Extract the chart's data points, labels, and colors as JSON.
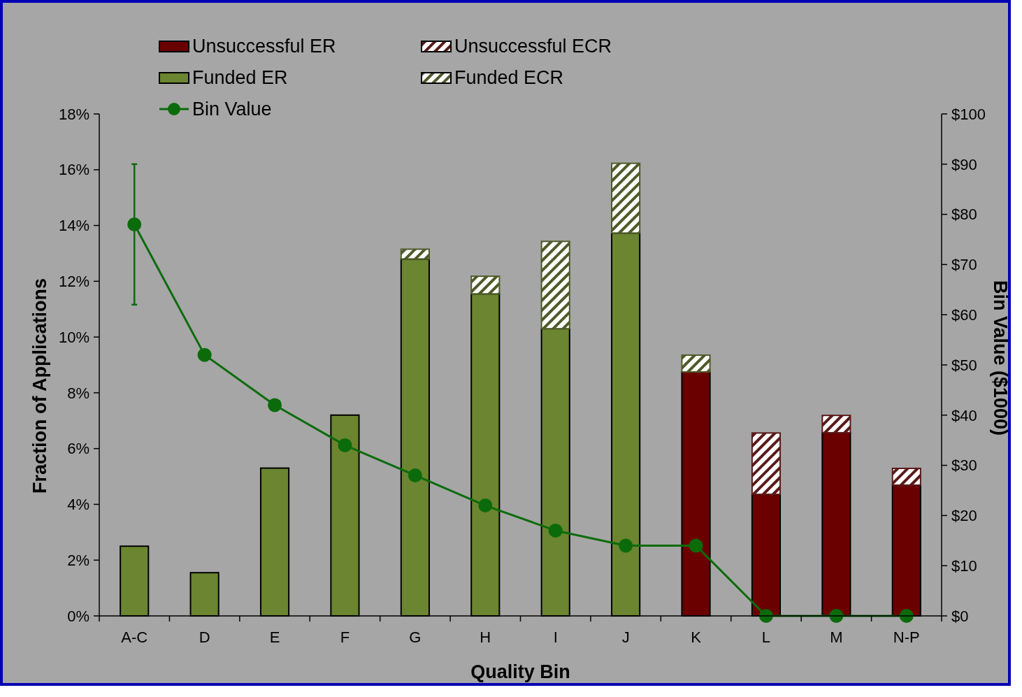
{
  "chart_data": {
    "type": "bar",
    "stacked": true,
    "xlabel": "Quality Bin",
    "ylabel": "Fraction of Applications",
    "y2label": "Bin Value ($1000)",
    "categories": [
      "A-C",
      "D",
      "E",
      "F",
      "G",
      "H",
      "I",
      "J",
      "K",
      "L",
      "M",
      "N-P"
    ],
    "series": [
      {
        "name": "Unsuccessful ER",
        "color": "#6b0000",
        "values": [
          null,
          null,
          null,
          null,
          null,
          null,
          null,
          null,
          8.75,
          4.36,
          6.57,
          4.69
        ]
      },
      {
        "name": "Unsuccessful ECR",
        "color": "#5a1a1a",
        "values": [
          null,
          null,
          null,
          null,
          null,
          null,
          null,
          null,
          null,
          2.2,
          0.62,
          0.6
        ]
      },
      {
        "name": "Funded ER",
        "color": "#6b8530",
        "values": [
          2.5,
          1.55,
          5.3,
          7.2,
          12.8,
          11.55,
          10.3,
          13.73,
          null,
          null,
          null,
          null
        ]
      },
      {
        "name": "Funded ECR",
        "color": "#4f5a2a",
        "values": [
          null,
          null,
          null,
          null,
          0.35,
          0.63,
          3.13,
          2.5,
          0.6,
          null,
          null,
          null
        ]
      },
      {
        "name": "Bin Value",
        "type": "line",
        "axis": "y2",
        "color": "#0b6b0b",
        "marker": "circle",
        "values": [
          78,
          52,
          42,
          34,
          28,
          22,
          17,
          14,
          14,
          0,
          0,
          0
        ],
        "errors": [
          [
            62,
            90
          ],
          null,
          null,
          null,
          null,
          null,
          null,
          null,
          null,
          null,
          null,
          null
        ]
      }
    ],
    "ylim": [
      0,
      18
    ],
    "yticks": [
      {
        "value": 0,
        "label": "0%"
      },
      {
        "value": 2,
        "label": "2%"
      },
      {
        "value": 4,
        "label": "4%"
      },
      {
        "value": 6,
        "label": "6%"
      },
      {
        "value": 8,
        "label": "8%"
      },
      {
        "value": 10,
        "label": "10%"
      },
      {
        "value": 12,
        "label": "12%"
      },
      {
        "value": 14,
        "label": "14%"
      },
      {
        "value": 16,
        "label": "16%"
      },
      {
        "value": 18,
        "label": "18%"
      }
    ],
    "y2lim": [
      0,
      100
    ],
    "y2ticks": [
      {
        "value": 0,
        "label": "$0"
      },
      {
        "value": 10,
        "label": "$10"
      },
      {
        "value": 20,
        "label": "$20"
      },
      {
        "value": 30,
        "label": "$30"
      },
      {
        "value": 40,
        "label": "$40"
      },
      {
        "value": 50,
        "label": "$50"
      },
      {
        "value": 60,
        "label": "$60"
      },
      {
        "value": 70,
        "label": "$70"
      },
      {
        "value": 80,
        "label": "$80"
      },
      {
        "value": 90,
        "label": "$90"
      },
      {
        "value": 100,
        "label": "$100"
      }
    ],
    "legend": "top left",
    "grid": false
  }
}
